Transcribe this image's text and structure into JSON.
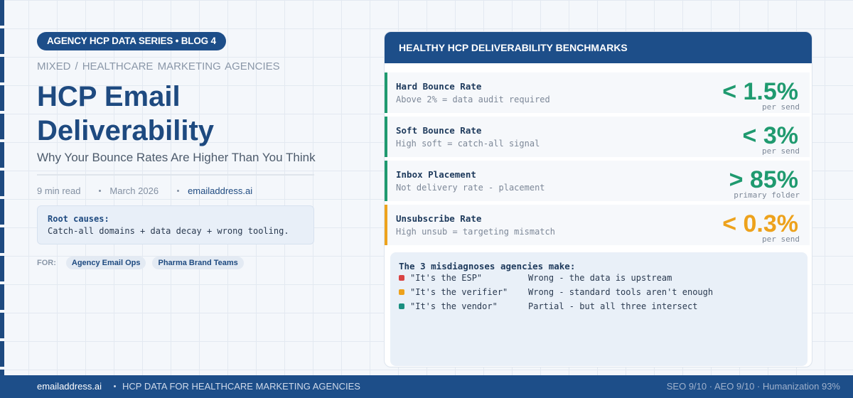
{
  "series_pill": "AGENCY HCP DATA SERIES • BLOG 4",
  "breadcrumb": [
    "MIXED",
    "/",
    "HEALTHCARE MARKETING AGENCIES"
  ],
  "title_lines": [
    "HCP Email",
    "Deliverability"
  ],
  "subtitle": "Why Your Bounce Rates Are Higher Than You Think",
  "meta": [
    "9 min read",
    "March 2026",
    "emailaddress.ai"
  ],
  "root_causes": {
    "heading": "Root causes:",
    "text": "Catch-all domains + data decay + wrong tooling."
  },
  "audience": {
    "label": "FOR:",
    "tags": [
      "Agency Email Ops",
      "Pharma Brand Teams"
    ]
  },
  "benchmarks": {
    "header": "HEALTHY HCP DELIVERABILITY BENCHMARKS",
    "rows": [
      {
        "title": "Hard Bounce Rate",
        "note": "Above 2% = data audit required",
        "value": "< 1.5%",
        "unit": "per send",
        "color": "#1f9a6f"
      },
      {
        "title": "Soft Bounce Rate",
        "note": "High soft = catch-all signal",
        "value": "< 3%",
        "unit": "per send",
        "color": "#1f9a6f"
      },
      {
        "title": "Inbox Placement",
        "note": "Not delivery rate - placement",
        "value": "> 85%",
        "unit": "primary folder",
        "color": "#1f9a6f"
      },
      {
        "title": "Unsubscribe Rate",
        "note": "High unsub = targeting mismatch",
        "value": "< 0.3%",
        "unit": "per send",
        "color": "#eda21c"
      }
    ]
  },
  "misdiagnoses": {
    "heading": "The 3 misdiagnoses agencies make:",
    "items": [
      {
        "quote": "\"It's the ESP\"",
        "verdict": "Wrong - the data is upstream",
        "color": "#d94444"
      },
      {
        "quote": "\"It's the verifier\"",
        "verdict": "Wrong - standard tools aren't enough",
        "color": "#eda21c"
      },
      {
        "quote": "\"It's the vendor\"",
        "verdict": "Partial - but all three intersect",
        "color": "#1a8f80"
      }
    ]
  },
  "footer": {
    "site": "emailaddress.ai",
    "tagline": "HCP DATA FOR HEALTHCARE MARKETING AGENCIES",
    "scores": "SEO 9/10 · AEO 9/10 · Humanization 93%"
  }
}
